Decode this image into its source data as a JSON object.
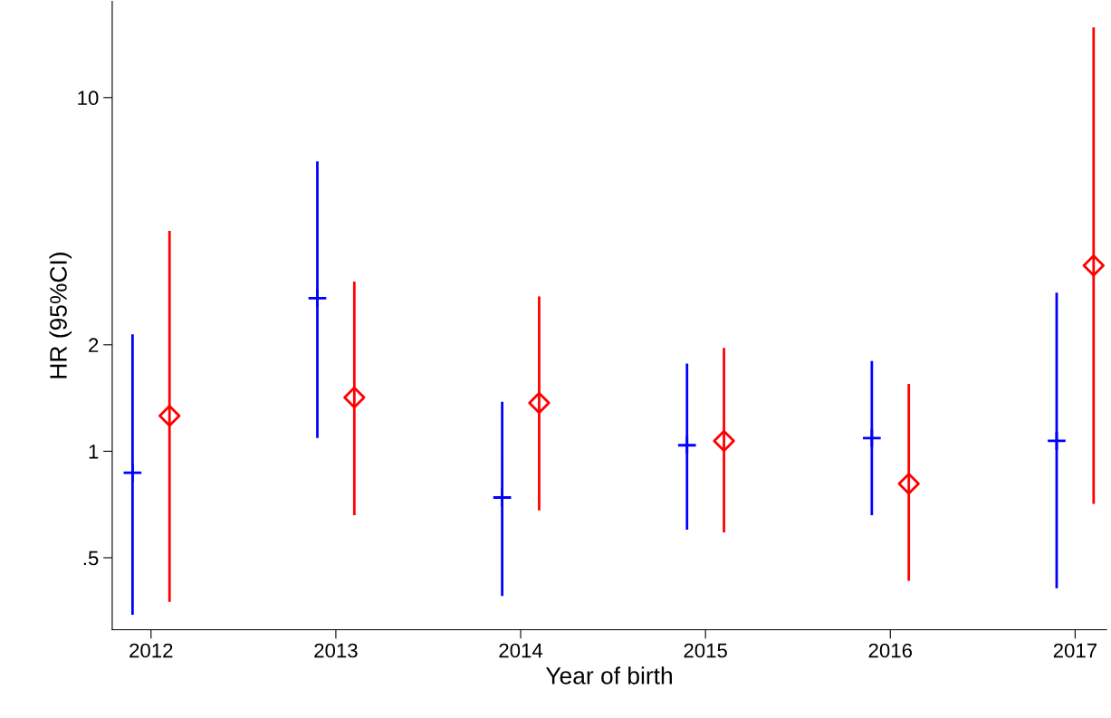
{
  "chart_data": {
    "type": "scatter",
    "xlabel": "Year of birth",
    "ylabel": "HR (95%CI)",
    "log": "y",
    "grid": false,
    "xlim": [
      2011.79,
      2017.17
    ],
    "xticks": [
      2012,
      2013,
      2014,
      2015,
      2016,
      2017
    ],
    "ylim": [
      0.313,
      18.7
    ],
    "yticks": [
      {
        "value": 0.5,
        "label": ".5"
      },
      1,
      2,
      10
    ],
    "series": [
      {
        "color": "#0000ff",
        "marker": "cross",
        "x": [
          2011.9,
          2012.9,
          2013.9,
          2014.9,
          2015.9,
          2016.9
        ],
        "values": [
          0.87,
          2.71,
          0.74,
          1.04,
          1.09,
          1.07
        ],
        "errors": [
          [
            0.345,
            2.14
          ],
          [
            1.09,
            6.6
          ],
          [
            0.39,
            1.38
          ],
          [
            0.6,
            1.77
          ],
          [
            0.66,
            1.8
          ],
          [
            0.41,
            2.81
          ]
        ]
      },
      {
        "color": "#ff0000",
        "marker": "diamond",
        "x": [
          2012.1,
          2013.1,
          2014.1,
          2015.1,
          2016.1,
          2017.1
        ],
        "values": [
          1.26,
          1.42,
          1.37,
          1.07,
          0.81,
          3.35
        ],
        "errors": [
          [
            0.375,
            4.2
          ],
          [
            0.66,
            3.02
          ],
          [
            0.68,
            2.74
          ],
          [
            0.59,
            1.96
          ],
          [
            0.43,
            1.55
          ],
          [
            0.71,
            15.8
          ]
        ]
      }
    ]
  }
}
